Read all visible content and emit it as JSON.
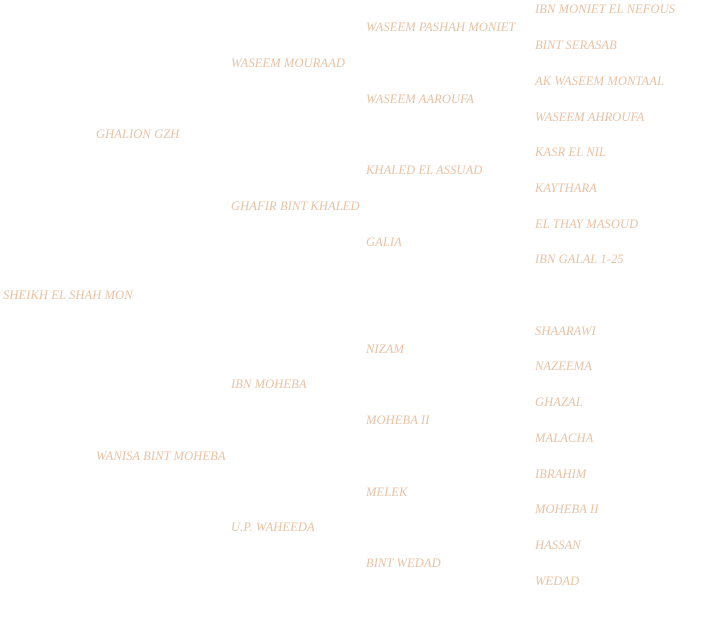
{
  "pedigree": {
    "subject": "SHEIKH EL SHAH MON",
    "sire": {
      "name": "GHALION GZH",
      "sire": {
        "name": "WASEEM MOURAAD",
        "sire": {
          "name": "WASEEM PASHAH MONIET",
          "sire": "IBN MONIET EL NEFOUS",
          "dam": "BINT SERASAB"
        },
        "dam": {
          "name": "WASEEM AAROUFA",
          "sire": "AK WASEEM MONTAAL",
          "dam": "WASEEM AHROUFA"
        }
      },
      "dam": {
        "name": "GHAFIR BINT KHALED",
        "sire": {
          "name": "KHALED EL ASSUAD",
          "sire": "KASR EL NIL",
          "dam": "KAYTHARA"
        },
        "dam": {
          "name": "GALIA",
          "sire": "EL THAY MASOUD",
          "dam": "IBN GALAL 1-25"
        }
      }
    },
    "dam": {
      "name": "WANISA BINT MOHEBA",
      "sire": {
        "name": "IBN MOHEBA",
        "sire": {
          "name": "NIZAM",
          "sire": "SHAARAWI",
          "dam": "NAZEEMA"
        },
        "dam": {
          "name": "MOHEBA II",
          "sire": "GHAZAL",
          "dam": "MALACHA"
        }
      },
      "dam": {
        "name": "U.P. WAHEEDA",
        "sire": {
          "name": "MELEK",
          "sire": "IBRAHIM",
          "dam": "MOHEBA II"
        },
        "dam": {
          "name": "BINT WEDAD",
          "sire": "HASSAN",
          "dam": "WEDAD"
        }
      }
    }
  },
  "colors": {
    "text": "#e8c3a6",
    "background": "#ffffff"
  }
}
